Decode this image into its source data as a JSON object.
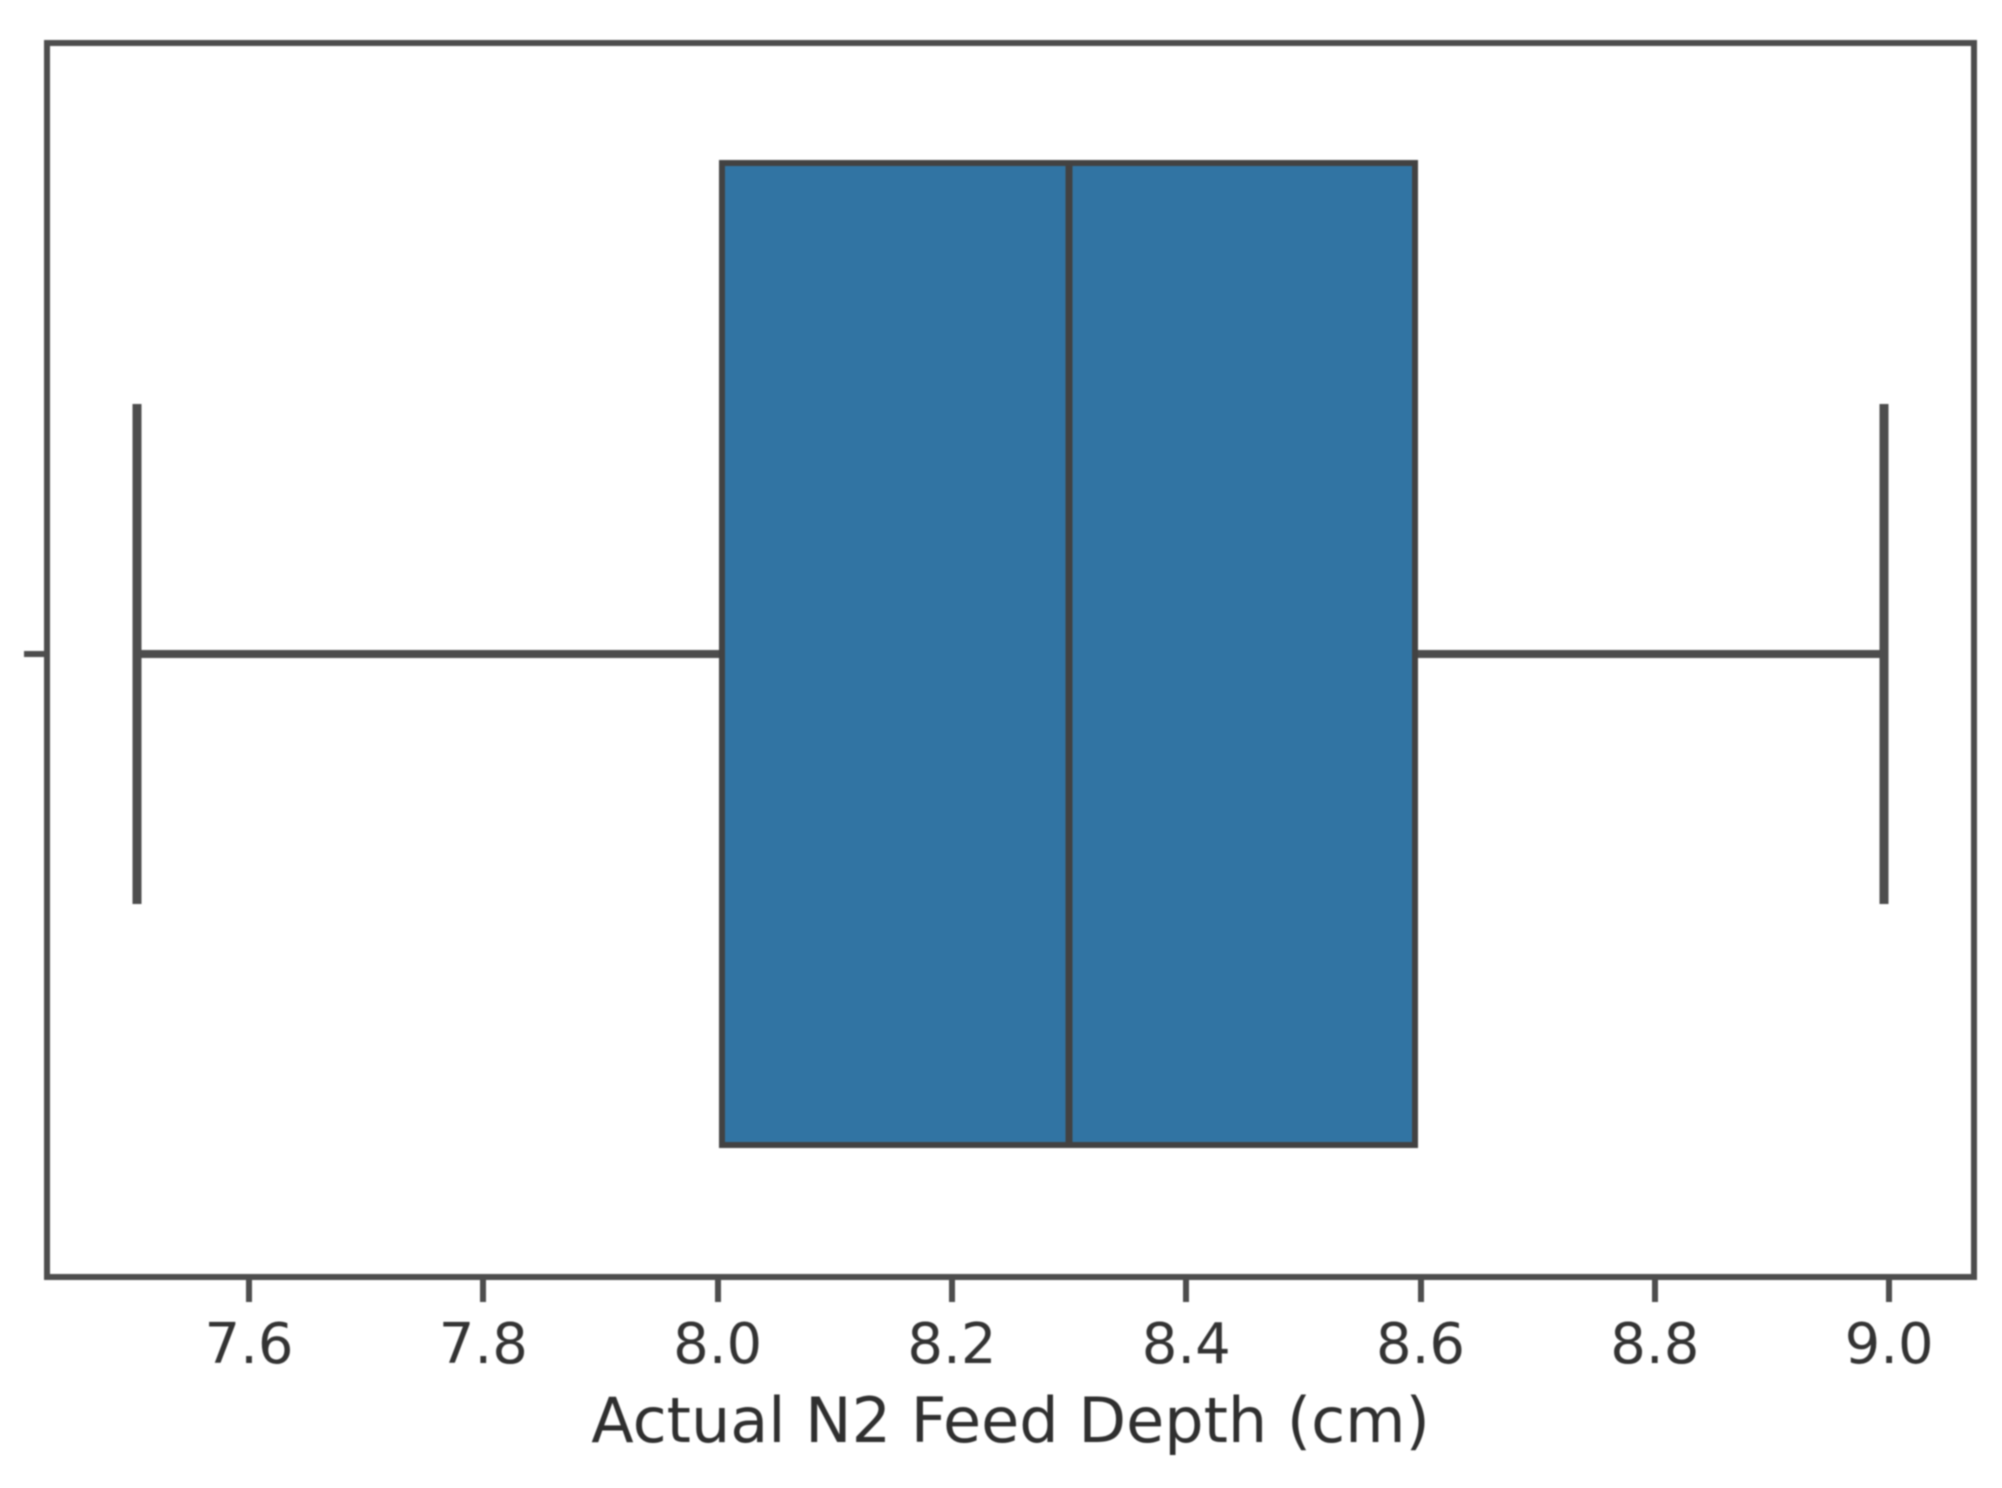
{
  "figure": {
    "background": "#ffffff"
  },
  "chart_data": {
    "type": "boxplot",
    "orientation": "horizontal",
    "title": "",
    "xlabel": "Actual N2 Feed Depth (cm)",
    "ylabel": "",
    "xlim": [
      7.425,
      9.075
    ],
    "xticks": [
      7.6,
      7.8,
      8.0,
      8.2,
      8.4,
      8.6,
      8.8,
      9.0
    ],
    "xtick_labels": [
      "7.6",
      "7.8",
      "8.0",
      "8.2",
      "8.4",
      "8.6",
      "8.8",
      "9.0"
    ],
    "grid": false,
    "legend_position": "none",
    "series": [
      {
        "name": "Actual N2 Feed Depth",
        "whisker_low": 7.5,
        "q1": 8.0,
        "median": 8.3,
        "q3": 8.6,
        "whisker_high": 9.0,
        "outliers": []
      }
    ],
    "colors": {
      "box_fill": "#3174a3",
      "box_edge": "#424242",
      "whisker": "#4d4d4d",
      "axis": "#4d4d4d",
      "tick_label": "#333333",
      "axis_label": "#2f2f2f",
      "background": "#ffffff"
    },
    "layout": {
      "box_center_frac": 0.495,
      "box_height_frac": 0.804,
      "cap_height_frac": 0.407
    }
  }
}
